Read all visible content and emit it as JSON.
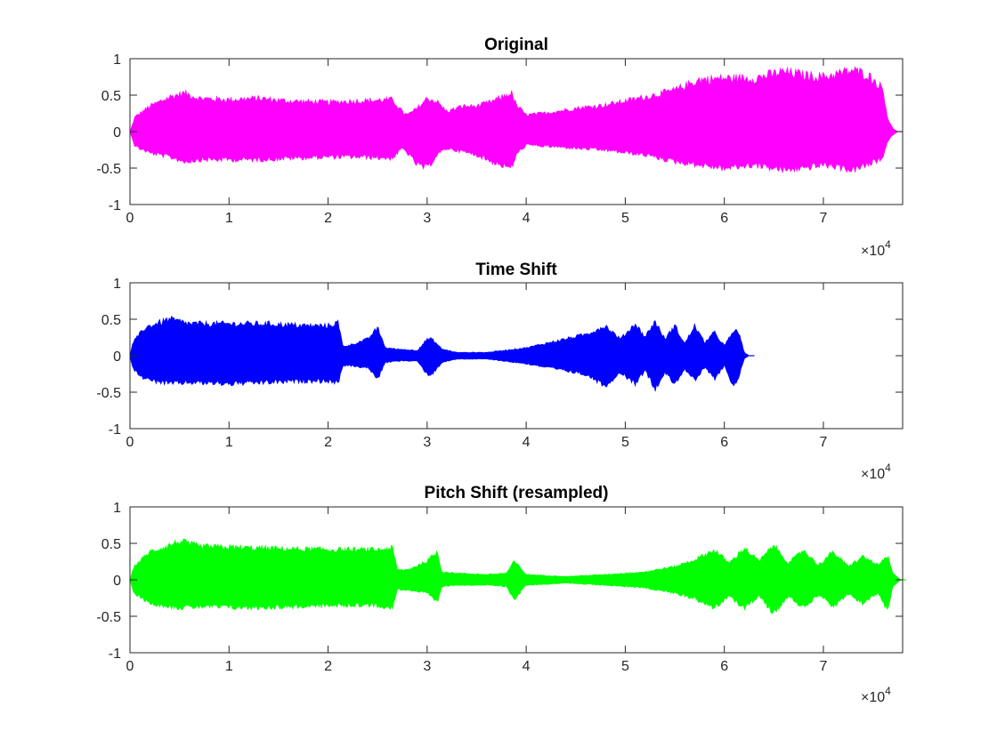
{
  "figure": {
    "panels": [
      {
        "title": "Original",
        "multiplier": {
          "times": "×10",
          "power": "4"
        }
      },
      {
        "title": "Time Shift",
        "multiplier": {
          "times": "×10",
          "power": "4"
        }
      },
      {
        "title": "Pitch Shift (resampled)",
        "multiplier": {
          "times": "×10",
          "power": "4"
        }
      }
    ]
  },
  "chart_data": [
    {
      "type": "area",
      "title": "Original",
      "xlabel": "",
      "ylabel": "",
      "xlim": [
        0,
        78000
      ],
      "ylim": [
        -1,
        1
      ],
      "x_ticks": [
        0,
        10000,
        20000,
        30000,
        40000,
        50000,
        60000,
        70000
      ],
      "x_tick_labels": [
        "0",
        "1",
        "2",
        "3",
        "4",
        "5",
        "6",
        "7"
      ],
      "x_multiplier": "×10^4",
      "y_ticks": [
        1,
        0.5,
        0,
        -0.5,
        -1
      ],
      "y_tick_labels": [
        "1",
        "0.5",
        "0",
        "-0.5",
        "-1"
      ],
      "grid": false,
      "color": "#ff00ff",
      "envelope": {
        "x": [
          0,
          500,
          2000,
          4000,
          5500,
          7000,
          10000,
          13000,
          16000,
          20000,
          23000,
          26500,
          27500,
          28000,
          29000,
          30000,
          31000,
          32000,
          33500,
          35000,
          36500,
          38500,
          39000,
          40000,
          42000,
          45000,
          48000,
          52000,
          55000,
          57500,
          60000,
          63000,
          66000,
          68000,
          70000,
          73000,
          74500,
          76000,
          76500,
          77000,
          77500
        ],
        "upper": [
          0,
          0.22,
          0.38,
          0.52,
          0.58,
          0.5,
          0.48,
          0.5,
          0.46,
          0.44,
          0.46,
          0.48,
          0.3,
          0.25,
          0.35,
          0.5,
          0.45,
          0.3,
          0.38,
          0.38,
          0.45,
          0.58,
          0.4,
          0.25,
          0.28,
          0.35,
          0.4,
          0.52,
          0.62,
          0.78,
          0.8,
          0.8,
          0.9,
          0.85,
          0.82,
          0.92,
          0.85,
          0.65,
          0.2,
          0.05,
          0
        ],
        "lower": [
          0,
          -0.22,
          -0.32,
          -0.38,
          -0.45,
          -0.42,
          -0.42,
          -0.42,
          -0.4,
          -0.38,
          -0.38,
          -0.4,
          -0.25,
          -0.32,
          -0.5,
          -0.55,
          -0.35,
          -0.25,
          -0.3,
          -0.35,
          -0.45,
          -0.55,
          -0.35,
          -0.2,
          -0.22,
          -0.25,
          -0.28,
          -0.35,
          -0.45,
          -0.5,
          -0.55,
          -0.5,
          -0.58,
          -0.55,
          -0.5,
          -0.58,
          -0.5,
          -0.4,
          -0.15,
          -0.05,
          0
        ]
      }
    },
    {
      "type": "area",
      "title": "Time Shift",
      "xlabel": "",
      "ylabel": "",
      "xlim": [
        0,
        78000
      ],
      "ylim": [
        -1,
        1
      ],
      "x_ticks": [
        0,
        10000,
        20000,
        30000,
        40000,
        50000,
        60000,
        70000
      ],
      "x_tick_labels": [
        "0",
        "1",
        "2",
        "3",
        "4",
        "5",
        "6",
        "7"
      ],
      "x_multiplier": "×10^4",
      "y_ticks": [
        1,
        0.5,
        0,
        -0.5,
        -1
      ],
      "y_tick_labels": [
        "1",
        "0.5",
        "0",
        "-0.5",
        "-1"
      ],
      "grid": false,
      "color": "#0000ff",
      "envelope": {
        "x": [
          0,
          300,
          1500,
          3000,
          4000,
          6000,
          10000,
          14000,
          18000,
          20000,
          21000,
          21500,
          22000,
          24000,
          25000,
          25800,
          27000,
          29000,
          30000,
          30500,
          31500,
          33000,
          36000,
          40000,
          43000,
          46000,
          48000,
          49500,
          51000,
          52000,
          53000,
          54000,
          55000,
          56000,
          57000,
          58000,
          59000,
          60000,
          61000,
          61500,
          62000,
          62500
        ],
        "upper": [
          0,
          0.2,
          0.42,
          0.5,
          0.55,
          0.48,
          0.48,
          0.48,
          0.45,
          0.45,
          0.5,
          0.15,
          0.15,
          0.25,
          0.42,
          0.12,
          0.1,
          0.08,
          0.25,
          0.25,
          0.1,
          0.05,
          0.05,
          0.12,
          0.22,
          0.32,
          0.45,
          0.25,
          0.48,
          0.28,
          0.52,
          0.25,
          0.45,
          0.18,
          0.45,
          0.2,
          0.35,
          0.15,
          0.38,
          0.35,
          0.05,
          0
        ],
        "lower": [
          0,
          -0.2,
          -0.35,
          -0.4,
          -0.42,
          -0.4,
          -0.42,
          -0.4,
          -0.38,
          -0.38,
          -0.42,
          -0.15,
          -0.15,
          -0.18,
          -0.35,
          -0.1,
          -0.08,
          -0.08,
          -0.28,
          -0.28,
          -0.1,
          -0.05,
          -0.05,
          -0.12,
          -0.2,
          -0.28,
          -0.45,
          -0.25,
          -0.42,
          -0.22,
          -0.5,
          -0.25,
          -0.42,
          -0.2,
          -0.38,
          -0.18,
          -0.35,
          -0.15,
          -0.48,
          -0.3,
          -0.05,
          0
        ]
      }
    },
    {
      "type": "area",
      "title": "Pitch Shift (resampled)",
      "xlabel": "",
      "ylabel": "",
      "xlim": [
        0,
        78000
      ],
      "ylim": [
        -1,
        1
      ],
      "x_ticks": [
        0,
        10000,
        20000,
        30000,
        40000,
        50000,
        60000,
        70000
      ],
      "x_tick_labels": [
        "0",
        "1",
        "2",
        "3",
        "4",
        "5",
        "6",
        "7"
      ],
      "x_multiplier": "×10^4",
      "y_ticks": [
        1,
        0.5,
        0,
        -0.5,
        -1
      ],
      "y_tick_labels": [
        "1",
        "0.5",
        "0",
        "-0.5",
        "-1"
      ],
      "grid": false,
      "color": "#00ff00",
      "envelope": {
        "x": [
          0,
          400,
          2000,
          4000,
          5000,
          7000,
          12000,
          17000,
          22000,
          25000,
          26500,
          27000,
          28000,
          30000,
          31000,
          31500,
          33000,
          36000,
          38000,
          38800,
          40000,
          44000,
          48000,
          52000,
          55000,
          57000,
          59000,
          60500,
          62000,
          63500,
          65000,
          66500,
          68000,
          69500,
          71000,
          72500,
          74000,
          75500,
          76500,
          77000,
          77800
        ],
        "upper": [
          0,
          0.2,
          0.42,
          0.52,
          0.58,
          0.5,
          0.48,
          0.46,
          0.45,
          0.45,
          0.48,
          0.15,
          0.15,
          0.28,
          0.42,
          0.12,
          0.1,
          0.08,
          0.1,
          0.28,
          0.08,
          0.05,
          0.08,
          0.12,
          0.2,
          0.3,
          0.45,
          0.25,
          0.48,
          0.28,
          0.52,
          0.25,
          0.45,
          0.22,
          0.42,
          0.2,
          0.35,
          0.22,
          0.35,
          0.1,
          0
        ],
        "lower": [
          0,
          -0.2,
          -0.35,
          -0.4,
          -0.42,
          -0.4,
          -0.42,
          -0.4,
          -0.38,
          -0.38,
          -0.42,
          -0.15,
          -0.15,
          -0.2,
          -0.35,
          -0.1,
          -0.08,
          -0.08,
          -0.1,
          -0.3,
          -0.08,
          -0.05,
          -0.08,
          -0.12,
          -0.2,
          -0.28,
          -0.42,
          -0.25,
          -0.42,
          -0.25,
          -0.5,
          -0.25,
          -0.42,
          -0.22,
          -0.4,
          -0.22,
          -0.35,
          -0.2,
          -0.48,
          -0.1,
          0
        ]
      }
    }
  ]
}
